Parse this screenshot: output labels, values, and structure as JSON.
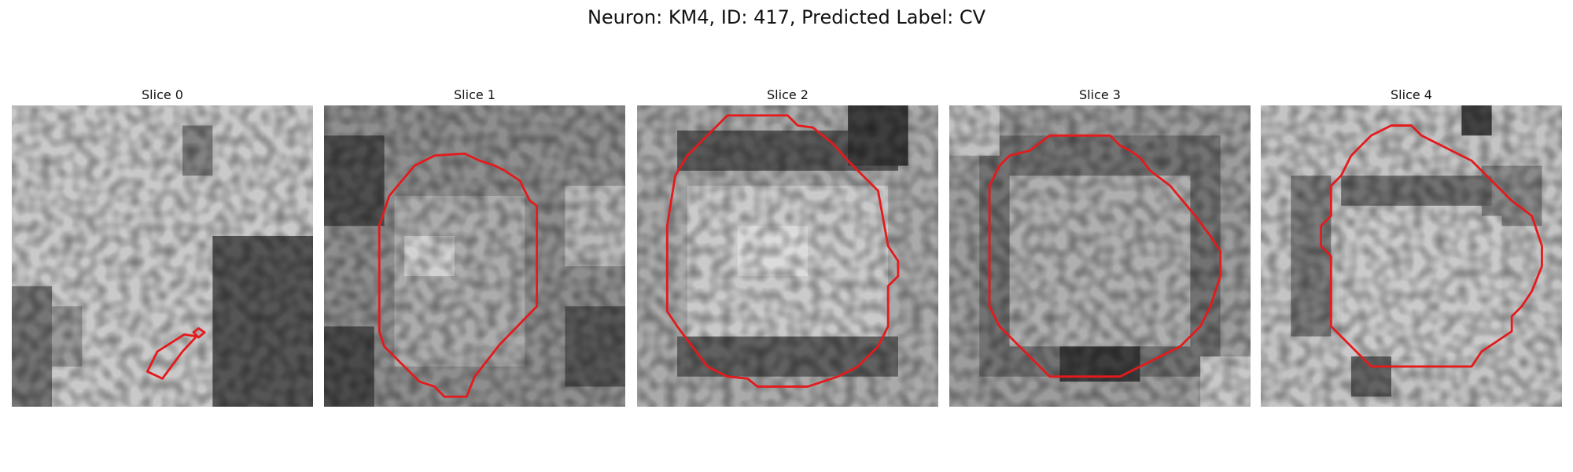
{
  "figure": {
    "title": "Neuron: KM4, ID: 417, Predicted Label: CV"
  },
  "panels": [
    {
      "title": "Slice 0"
    },
    {
      "title": "Slice 1"
    },
    {
      "title": "Slice 2"
    },
    {
      "title": "Slice 3"
    },
    {
      "title": "Slice 4"
    }
  ],
  "colors": {
    "contour": "#e41a1c"
  }
}
